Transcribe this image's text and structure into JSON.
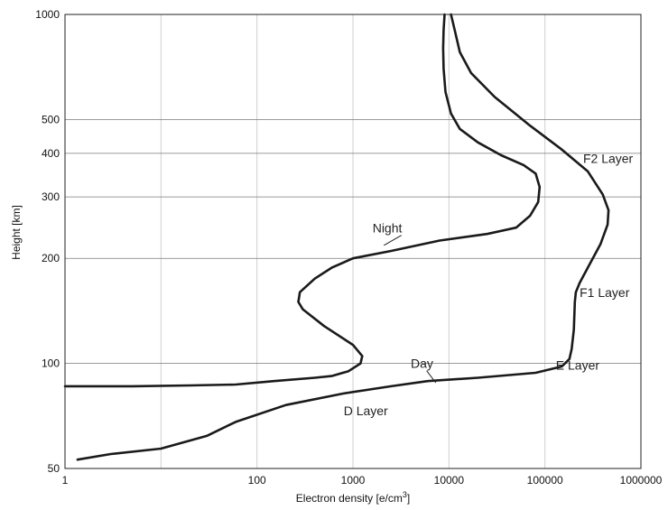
{
  "chart_data": {
    "type": "line",
    "title": "",
    "xlabel": "Electron density [e/cm3]",
    "ylabel": "Height [km]",
    "x_scale": "log",
    "y_scale": "log",
    "xlim": [
      1,
      1000000
    ],
    "ylim": [
      50,
      1000
    ],
    "grid": true,
    "x_ticks": [
      1,
      10,
      100,
      1000,
      10000,
      100000,
      1000000
    ],
    "x_tick_labels": [
      "1",
      "",
      "100",
      "1000",
      "10000",
      "100000",
      "1000000"
    ],
    "y_ticks": [
      50,
      100,
      200,
      300,
      400,
      500,
      1000
    ],
    "y_tick_labels": [
      "50",
      "100",
      "200",
      "300",
      "400",
      "500",
      "1000"
    ],
    "series": [
      {
        "name": "Night",
        "points": [
          [
            9000,
            1000
          ],
          [
            8800,
            900
          ],
          [
            8700,
            800
          ],
          [
            8800,
            700
          ],
          [
            9200,
            600
          ],
          [
            10500,
            520
          ],
          [
            13000,
            470
          ],
          [
            20000,
            430
          ],
          [
            35000,
            395
          ],
          [
            60000,
            370
          ],
          [
            80000,
            350
          ],
          [
            88000,
            320
          ],
          [
            85000,
            290
          ],
          [
            70000,
            265
          ],
          [
            50000,
            245
          ],
          [
            25000,
            235
          ],
          [
            8000,
            225
          ],
          [
            2500,
            210
          ],
          [
            1000,
            200
          ],
          [
            600,
            188
          ],
          [
            400,
            175
          ],
          [
            280,
            160
          ],
          [
            270,
            150
          ],
          [
            300,
            143
          ],
          [
            500,
            128
          ],
          [
            1000,
            113
          ],
          [
            1250,
            105
          ],
          [
            1200,
            100
          ],
          [
            900,
            95
          ],
          [
            600,
            92
          ],
          [
            400,
            91
          ],
          [
            150,
            89
          ],
          [
            60,
            87
          ],
          [
            20,
            86.5
          ],
          [
            5,
            86
          ],
          [
            1,
            86
          ]
        ]
      },
      {
        "name": "Day",
        "points": [
          [
            10500,
            1000
          ],
          [
            11500,
            900
          ],
          [
            13000,
            780
          ],
          [
            17000,
            680
          ],
          [
            30000,
            580
          ],
          [
            70000,
            480
          ],
          [
            150000,
            410
          ],
          [
            280000,
            355
          ],
          [
            400000,
            305
          ],
          [
            460000,
            275
          ],
          [
            450000,
            250
          ],
          [
            380000,
            220
          ],
          [
            300000,
            195
          ],
          [
            230000,
            170
          ],
          [
            210000,
            160
          ],
          [
            205000,
            150
          ],
          [
            200000,
            125
          ],
          [
            190000,
            110
          ],
          [
            180000,
            103
          ],
          [
            150000,
            98
          ],
          [
            80000,
            94
          ],
          [
            20000,
            91
          ],
          [
            6000,
            89
          ],
          [
            2500,
            86
          ],
          [
            800,
            82
          ],
          [
            200,
            76
          ],
          [
            60,
            68
          ],
          [
            30,
            62
          ],
          [
            10,
            57
          ],
          [
            3,
            55
          ],
          [
            1.35,
            53
          ]
        ]
      }
    ],
    "annotations": [
      {
        "text": "Night",
        "x": 1600,
        "y": 237,
        "pointer_to": [
          2100,
          218
        ]
      },
      {
        "text": "Day",
        "x": 4000,
        "y": 97,
        "pointer_to": [
          7300,
          88
        ]
      },
      {
        "text": "F2 Layer",
        "x": 250000,
        "y": 375
      },
      {
        "text": "F1 Layer",
        "x": 230000,
        "y": 155
      },
      {
        "text": "E Layer",
        "x": 130000,
        "y": 96
      },
      {
        "text": "D Layer",
        "x": 800,
        "y": 71
      }
    ]
  }
}
